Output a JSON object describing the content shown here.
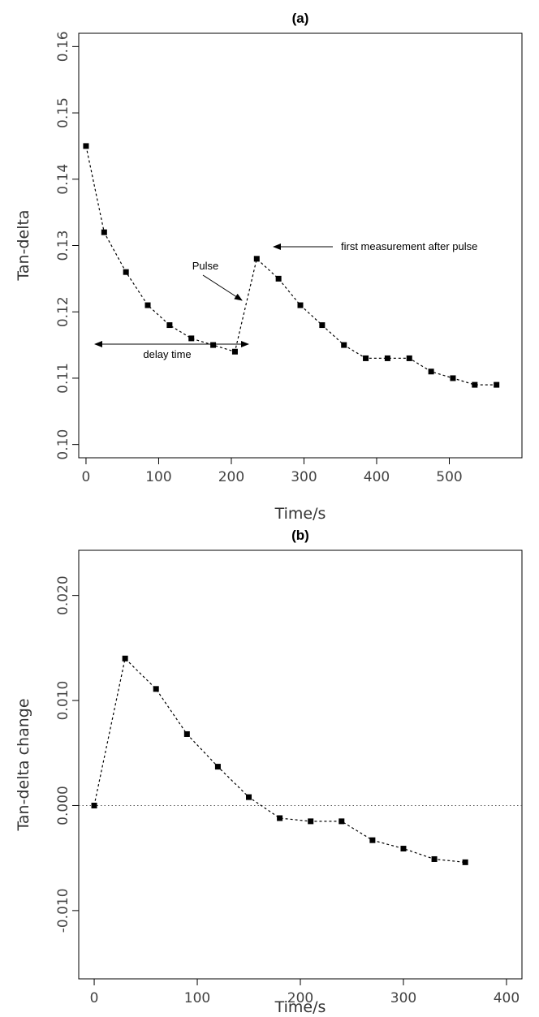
{
  "chart_data": [
    {
      "type": "line",
      "title": "(a)",
      "xlabel": "Time/s",
      "ylabel": "Tan-delta",
      "xlim": [
        -10,
        600
      ],
      "ylim": [
        0.098,
        0.162
      ],
      "xticks": [
        0,
        100,
        200,
        300,
        400,
        500
      ],
      "yticks": [
        0.1,
        0.11,
        0.12,
        0.13,
        0.14,
        0.15,
        0.16
      ],
      "ytick_labels": [
        "0.10",
        "0.11",
        "0.12",
        "0.13",
        "0.14",
        "0.15",
        "0.16"
      ],
      "grid": false,
      "series": [
        {
          "x": [
            0,
            25,
            55,
            85,
            115,
            145,
            175,
            205,
            235,
            265,
            295,
            325,
            355,
            385,
            415,
            445,
            475,
            505,
            535,
            565
          ],
          "values": [
            0.145,
            0.132,
            0.126,
            0.121,
            0.118,
            0.116,
            0.115,
            0.114,
            0.128,
            0.125,
            0.121,
            0.118,
            0.115,
            0.113,
            0.113,
            0.113,
            0.111,
            0.11,
            0.109,
            0.109
          ]
        }
      ],
      "annotations": {
        "pulse": "Pulse",
        "first": "first measurement after pulse",
        "delay": "delay time"
      }
    },
    {
      "type": "line",
      "title": "(b)",
      "xlabel": "Time/s",
      "ylabel": "Tan-delta change",
      "xlim": [
        -15,
        415
      ],
      "ylim": [
        -0.0165,
        0.0243
      ],
      "xticks": [
        0,
        100,
        200,
        300,
        400
      ],
      "yticks": [
        -0.01,
        0.0,
        0.01,
        0.02
      ],
      "ytick_labels": [
        "-0.010",
        "0.000",
        "0.010",
        "0.020"
      ],
      "grid": false,
      "reference_line_y": 0,
      "series": [
        {
          "x": [
            0,
            30,
            60,
            90,
            120,
            150,
            180,
            210,
            240,
            270,
            300,
            330,
            360
          ],
          "values": [
            0.0,
            0.014,
            0.0111,
            0.0068,
            0.0037,
            0.0008,
            -0.0012,
            -0.0015,
            -0.0015,
            -0.0033,
            -0.0041,
            -0.0051,
            -0.0054
          ]
        }
      ]
    }
  ]
}
